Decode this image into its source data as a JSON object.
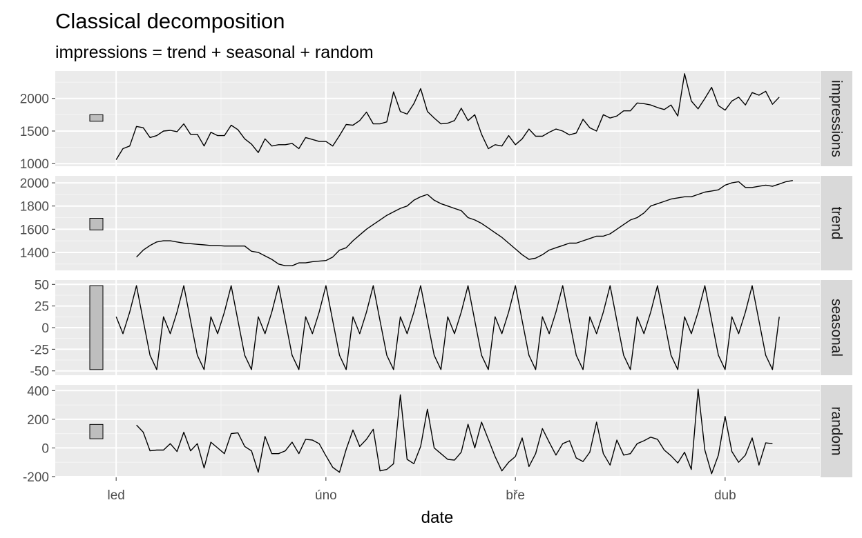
{
  "chart_data": {
    "type": "line",
    "title": "Classical decomposition",
    "subtitle": "impressions = trend + seasonal + random",
    "xlabel": "date",
    "x_ticks": [
      {
        "label": "led",
        "day": 0
      },
      {
        "label": "úno",
        "day": 31
      },
      {
        "label": "bře",
        "day": 59
      },
      {
        "label": "dub",
        "day": 90
      }
    ],
    "x_range_days": [
      -9,
      104
    ],
    "panels": [
      {
        "strip": "impressions",
        "ylim": [
          960,
          2420
        ],
        "yticks": [
          1000,
          1500,
          2000
        ],
        "ytick_labels": [
          "1000",
          "1500",
          "2000"
        ],
        "scale_bar": [
          1650,
          1750
        ],
        "x_start_day": 0,
        "values": [
          1060,
          1230,
          1270,
          1570,
          1550,
          1400,
          1430,
          1500,
          1510,
          1490,
          1610,
          1450,
          1450,
          1270,
          1480,
          1430,
          1430,
          1590,
          1520,
          1380,
          1300,
          1170,
          1380,
          1270,
          1290,
          1290,
          1310,
          1230,
          1400,
          1370,
          1340,
          1340,
          1270,
          1430,
          1600,
          1590,
          1660,
          1790,
          1610,
          1610,
          1640,
          2100,
          1800,
          1760,
          1920,
          2150,
          1800,
          1700,
          1610,
          1620,
          1660,
          1850,
          1660,
          1750,
          1450,
          1230,
          1290,
          1270,
          1430,
          1290,
          1380,
          1530,
          1420,
          1420,
          1480,
          1530,
          1500,
          1440,
          1470,
          1680,
          1550,
          1500,
          1750,
          1700,
          1730,
          1810,
          1810,
          1930,
          1920,
          1900,
          1860,
          1830,
          1900,
          1730,
          2380,
          1960,
          1840,
          2000,
          2170,
          1890,
          1820,
          1960,
          2020,
          1900,
          2090,
          2050,
          2110,
          1910,
          2020
        ]
      },
      {
        "strip": "trend",
        "ylim": [
          1245,
          2060
        ],
        "yticks": [
          1400,
          1600,
          1800,
          2000
        ],
        "ytick_labels": [
          "1400",
          "1600",
          "1800",
          "2000"
        ],
        "scale_bar": [
          1594,
          1694
        ],
        "x_start_day": 3,
        "values": [
          1360,
          1420,
          1460,
          1490,
          1500,
          1500,
          1490,
          1480,
          1475,
          1470,
          1465,
          1460,
          1460,
          1455,
          1455,
          1455,
          1455,
          1410,
          1400,
          1370,
          1340,
          1300,
          1285,
          1285,
          1310,
          1310,
          1320,
          1325,
          1330,
          1360,
          1420,
          1440,
          1500,
          1550,
          1600,
          1640,
          1680,
          1720,
          1750,
          1780,
          1800,
          1850,
          1880,
          1900,
          1850,
          1820,
          1800,
          1780,
          1760,
          1700,
          1680,
          1650,
          1610,
          1570,
          1530,
          1480,
          1430,
          1380,
          1340,
          1350,
          1380,
          1420,
          1440,
          1460,
          1480,
          1480,
          1500,
          1520,
          1540,
          1540,
          1560,
          1600,
          1640,
          1680,
          1700,
          1740,
          1800,
          1820,
          1840,
          1860,
          1870,
          1880,
          1880,
          1900,
          1920,
          1930,
          1940,
          1980,
          2000,
          2010,
          1960,
          1960,
          1970,
          1980,
          1970,
          1990,
          2010,
          2020
        ]
      },
      {
        "strip": "seasonal",
        "ylim": [
          -55,
          55
        ],
        "yticks": [
          -50,
          -25,
          0,
          25,
          50
        ],
        "ytick_labels": [
          "-50",
          "-25",
          "0",
          "25",
          "50"
        ],
        "scale_bar": [
          -48.5,
          48.5
        ],
        "x_start_day": 0,
        "pattern": [
          12.5,
          -7.0,
          18.0,
          48.5,
          8.0,
          -32.0,
          -48.5
        ],
        "n": 99
      },
      {
        "strip": "random",
        "ylim": [
          -205,
          440
        ],
        "yticks": [
          -200,
          0,
          200,
          400
        ],
        "ytick_labels": [
          "-200",
          "0",
          "200",
          "400"
        ],
        "scale_bar": [
          64,
          164
        ],
        "x_start_day": 3,
        "values": [
          160,
          110,
          -20,
          -15,
          -15,
          30,
          -25,
          110,
          -20,
          30,
          -140,
          40,
          0,
          -40,
          100,
          105,
          10,
          -20,
          -170,
          80,
          -40,
          -40,
          -20,
          40,
          -40,
          60,
          55,
          30,
          -55,
          -135,
          -170,
          -10,
          125,
          10,
          60,
          130,
          -160,
          -150,
          -110,
          370,
          -80,
          -110,
          10,
          270,
          0,
          -40,
          -80,
          -85,
          -30,
          165,
          0,
          180,
          60,
          -60,
          -160,
          -100,
          -60,
          70,
          -130,
          -40,
          135,
          40,
          -50,
          30,
          50,
          -70,
          -95,
          -30,
          180,
          -40,
          -120,
          55,
          -50,
          -40,
          30,
          50,
          75,
          60,
          -15,
          -55,
          -105,
          -30,
          -150,
          410,
          -15,
          -180,
          -50,
          220,
          -25,
          -100,
          -50,
          70,
          -120,
          35,
          30
        ]
      }
    ]
  }
}
